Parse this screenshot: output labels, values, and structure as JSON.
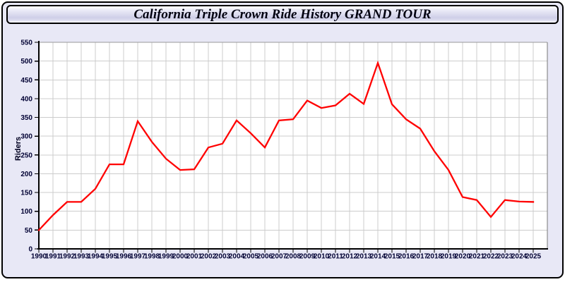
{
  "window": {
    "title": "California Triple Crown Ride History GRAND TOUR"
  },
  "chart_data": {
    "type": "line",
    "title": "California Triple Crown Ride History GRAND TOUR",
    "xlabel": "",
    "ylabel": "Riders",
    "ylim": [
      0,
      550
    ],
    "ytick_step": 50,
    "grid": true,
    "legend": "none",
    "x": [
      1990,
      1991,
      1992,
      1993,
      1994,
      1995,
      1996,
      1997,
      1998,
      1999,
      2000,
      2001,
      2002,
      2003,
      2004,
      2005,
      2006,
      2007,
      2008,
      2009,
      2010,
      2011,
      2012,
      2013,
      2014,
      2015,
      2016,
      2017,
      2018,
      2019,
      2020,
      2021,
      2022,
      2023,
      2024,
      2025
    ],
    "series": [
      {
        "name": "Riders",
        "values": [
          50,
          90,
          125,
          125,
          160,
          225,
          225,
          340,
          285,
          240,
          210,
          212,
          270,
          280,
          342,
          308,
          270,
          342,
          345,
          395,
          375,
          382,
          413,
          386,
          495,
          385,
          345,
          320,
          260,
          210,
          138,
          130,
          85,
          130,
          126,
          125
        ]
      }
    ]
  },
  "colors": {
    "line": "#ff0000",
    "panel_bg": "#e8e8f6",
    "plot_bg": "#ffffff",
    "grid": "#cccccc",
    "plot_border_top": "#999999",
    "plot_border_right": "#777777",
    "axis": "#000000",
    "tick_text": "#000033"
  }
}
